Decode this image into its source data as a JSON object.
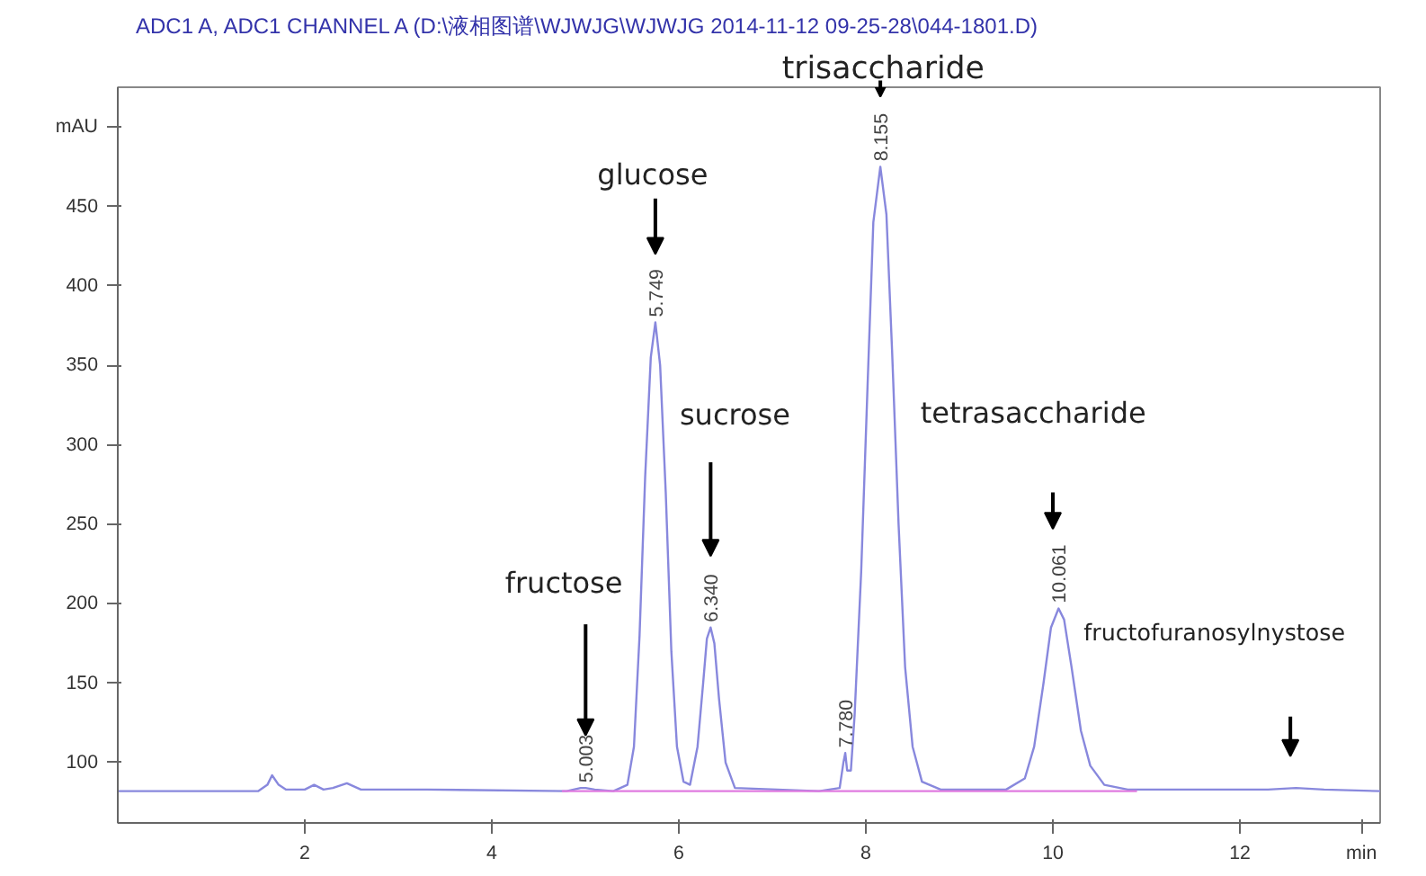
{
  "chart_data": {
    "type": "line",
    "title": "ADC1 A, ADC1 CHANNEL A (D:\\液相图谱\\WJWJG\\WJWJG 2014-11-12 09-25-28\\044-1801.D)",
    "xlim": [
      0,
      13.5
    ],
    "ylim": [
      62,
      525
    ],
    "xticks": [
      2,
      4,
      6,
      8,
      10,
      12,
      {
        "value": 13.3,
        "label": "min"
      }
    ],
    "yticks": [
      100,
      150,
      200,
      250,
      300,
      350,
      400,
      450,
      {
        "value": 500,
        "label": "mAU"
      }
    ],
    "grid": false,
    "marker": "none",
    "line_style": "solid",
    "series": [
      {
        "color": "#8888dd",
        "x": [
          0,
          1.5,
          1.6,
          1.65,
          1.72,
          1.8,
          2.0,
          2.1,
          2.2,
          2.3,
          2.45,
          2.6,
          3.3,
          4.8,
          4.95,
          5.003,
          5.1,
          5.3,
          5.45,
          5.52,
          5.58,
          5.64,
          5.7,
          5.749,
          5.8,
          5.86,
          5.92,
          5.98,
          6.05,
          6.12,
          6.2,
          6.26,
          6.3,
          6.34,
          6.38,
          6.43,
          6.5,
          6.6,
          7.5,
          7.72,
          7.76,
          7.78,
          7.8,
          7.84,
          7.88,
          7.95,
          8.02,
          8.08,
          8.155,
          8.22,
          8.28,
          8.35,
          8.42,
          8.5,
          8.6,
          8.8,
          9.5,
          9.7,
          9.8,
          9.9,
          9.98,
          10.061,
          10.12,
          10.2,
          10.3,
          10.4,
          10.55,
          10.8,
          12.3,
          12.6,
          12.9,
          13.5
        ],
        "values": [
          82,
          82,
          86,
          92,
          86,
          83,
          83,
          86,
          83,
          84,
          87,
          83,
          83,
          82,
          84,
          84,
          83,
          82,
          86,
          110,
          180,
          280,
          355,
          377,
          350,
          270,
          170,
          110,
          88,
          86,
          110,
          150,
          178,
          185,
          175,
          140,
          100,
          84,
          82,
          84,
          100,
          106,
          95,
          95,
          130,
          220,
          340,
          440,
          475,
          445,
          360,
          250,
          160,
          110,
          88,
          83,
          83,
          90,
          110,
          150,
          185,
          197,
          190,
          160,
          120,
          98,
          86,
          83,
          83,
          84,
          83,
          82
        ]
      },
      {
        "color": "#e07be0",
        "x": [
          4.75,
          10.9
        ],
        "values": [
          82,
          82
        ]
      }
    ],
    "annotations": [
      {
        "text": "5.003",
        "x": 5.003,
        "y": 84
      },
      {
        "text": "5.749",
        "x": 5.749,
        "y": 377
      },
      {
        "text": "6.340",
        "x": 6.34,
        "y": 185
      },
      {
        "text": "7.780",
        "x": 7.78,
        "y": 106
      },
      {
        "text": "8.155",
        "x": 8.155,
        "y": 475
      },
      {
        "text": "10.061",
        "x": 10.061,
        "y": 197
      },
      "fructose",
      "glucose",
      "sucrose",
      "trisaccharide",
      "tetrasaccharide",
      "fructofuranosylnystose"
    ]
  }
}
